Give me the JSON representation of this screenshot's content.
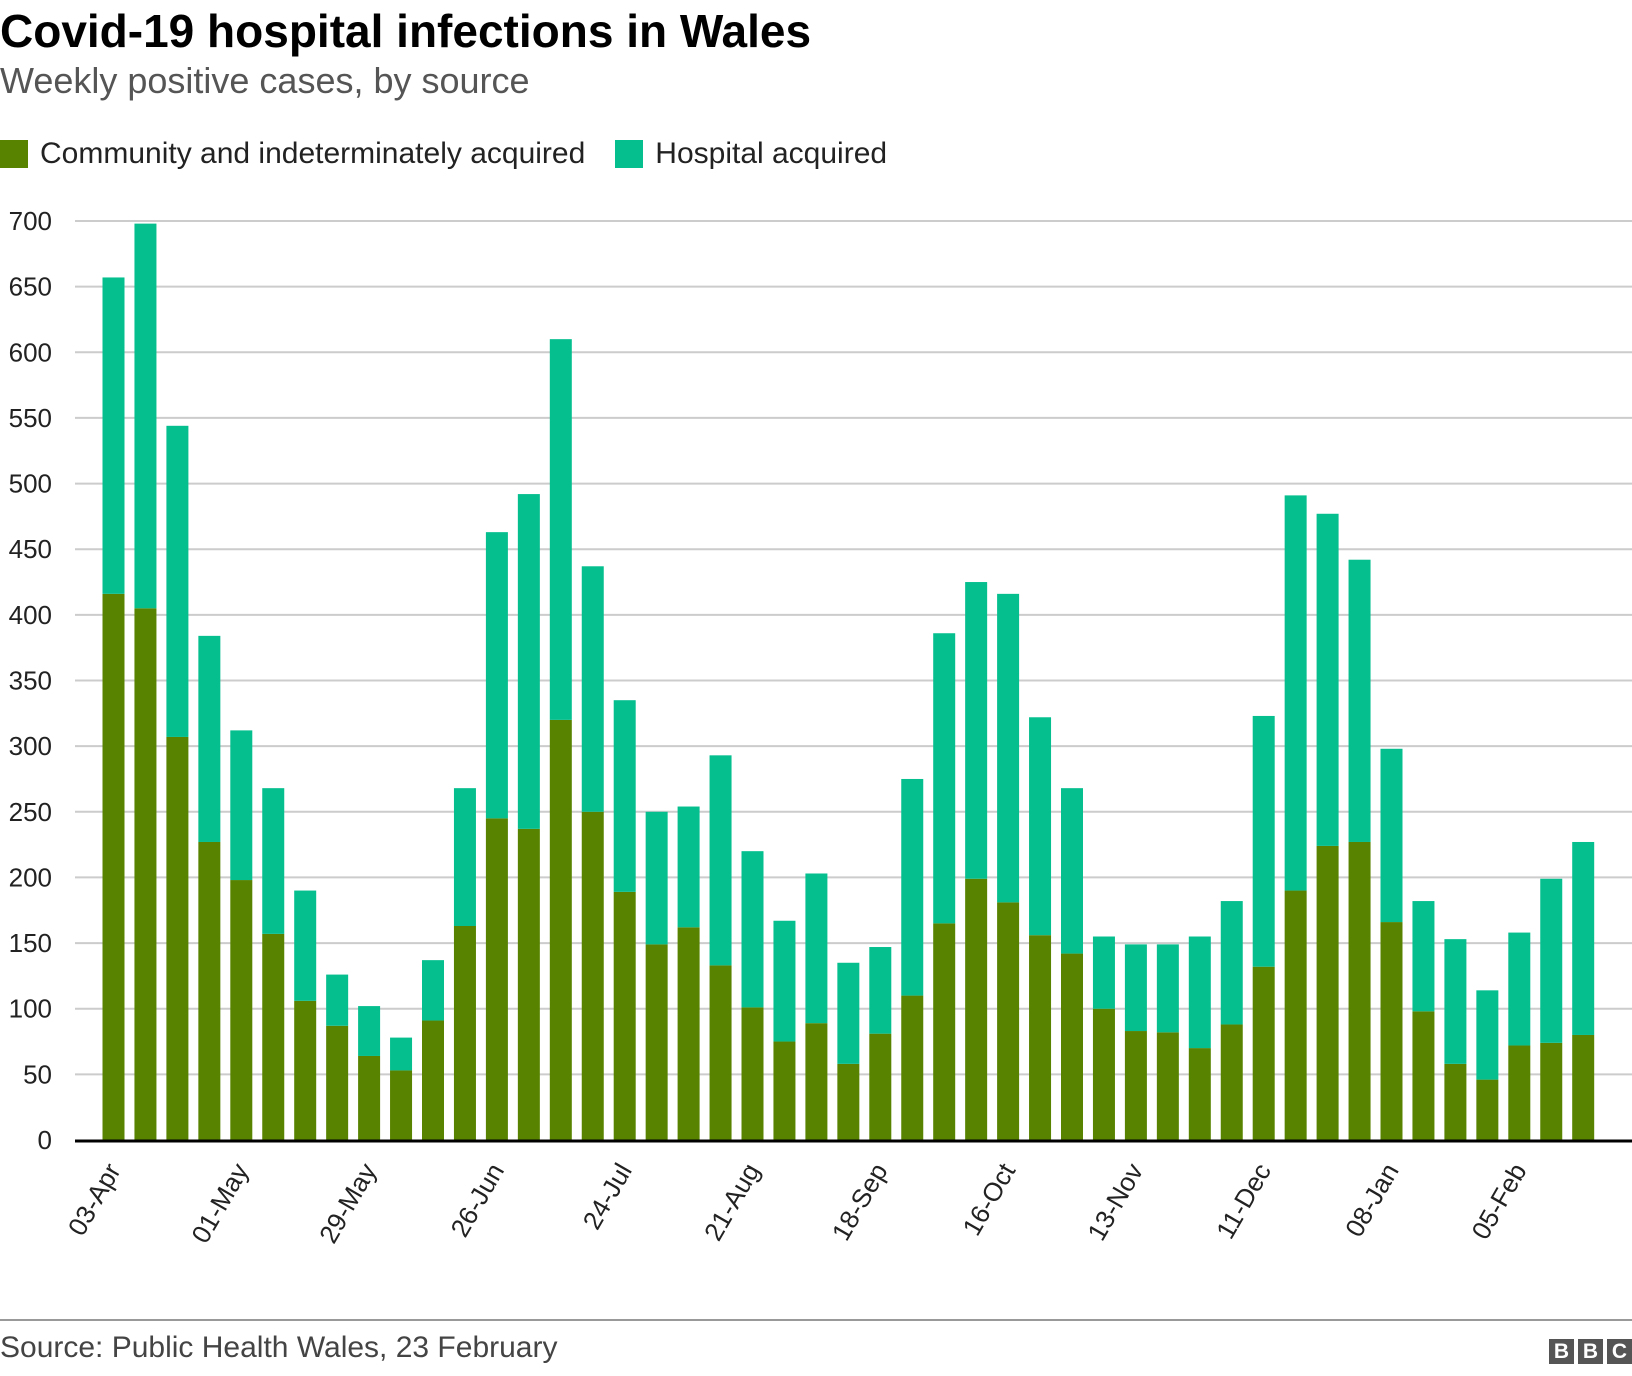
{
  "chart_data": {
    "type": "bar",
    "stacked": true,
    "title": "Covid-19 hospital infections in Wales",
    "subtitle": "Weekly positive cases, by source",
    "xlabel": "",
    "ylabel": "",
    "ylim": [
      0,
      700
    ],
    "yticks": [
      0,
      50,
      100,
      150,
      200,
      250,
      300,
      350,
      400,
      450,
      500,
      550,
      600,
      650,
      700
    ],
    "grid": true,
    "legend_placement": "top-left",
    "x_tick_labels": [
      "03-Apr",
      "01-May",
      "29-May",
      "26-Jun",
      "24-Jul",
      "21-Aug",
      "18-Sep",
      "16-Oct",
      "13-Nov",
      "11-Dec",
      "08-Jan",
      "05-Feb"
    ],
    "categories": [
      "03-Apr",
      "10-Apr",
      "17-Apr",
      "24-Apr",
      "01-May",
      "08-May",
      "15-May",
      "22-May",
      "29-May",
      "05-Jun",
      "12-Jun",
      "19-Jun",
      "26-Jun",
      "03-Jul",
      "10-Jul",
      "17-Jul",
      "24-Jul",
      "31-Jul",
      "07-Aug",
      "14-Aug",
      "21-Aug",
      "28-Aug",
      "04-Sep",
      "11-Sep",
      "18-Sep",
      "25-Sep",
      "02-Oct",
      "09-Oct",
      "16-Oct",
      "23-Oct",
      "30-Oct",
      "06-Nov",
      "13-Nov",
      "20-Nov",
      "27-Nov",
      "04-Dec",
      "11-Dec",
      "18-Dec",
      "25-Dec",
      "01-Jan",
      "08-Jan",
      "15-Jan",
      "22-Jan",
      "29-Jan",
      "05-Feb",
      "12-Feb",
      "19-Feb"
    ],
    "series": [
      {
        "name": "Community and indeterminately acquired",
        "color": "#588300",
        "values": [
          416,
          405,
          307,
          227,
          198,
          157,
          106,
          87,
          64,
          53,
          91,
          163,
          245,
          237,
          320,
          250,
          189,
          149,
          162,
          133,
          101,
          75,
          89,
          58,
          81,
          110,
          165,
          199,
          181,
          156,
          142,
          100,
          83,
          82,
          70,
          88,
          132,
          190,
          224,
          227,
          166,
          98,
          58,
          46,
          72,
          74,
          80
        ]
      },
      {
        "name": "Hospital acquired",
        "color": "#06bf8f",
        "values": [
          241,
          293,
          237,
          157,
          114,
          111,
          84,
          39,
          38,
          25,
          46,
          105,
          218,
          255,
          290,
          187,
          146,
          101,
          92,
          160,
          119,
          92,
          114,
          77,
          66,
          165,
          221,
          226,
          235,
          166,
          126,
          55,
          66,
          67,
          85,
          94,
          191,
          301,
          253,
          215,
          132,
          84,
          95,
          68,
          86,
          125,
          147
        ]
      }
    ]
  },
  "footer": {
    "source": "Source: Public Health Wales, 23 February"
  },
  "logo": {
    "letters": [
      "B",
      "B",
      "C"
    ]
  }
}
